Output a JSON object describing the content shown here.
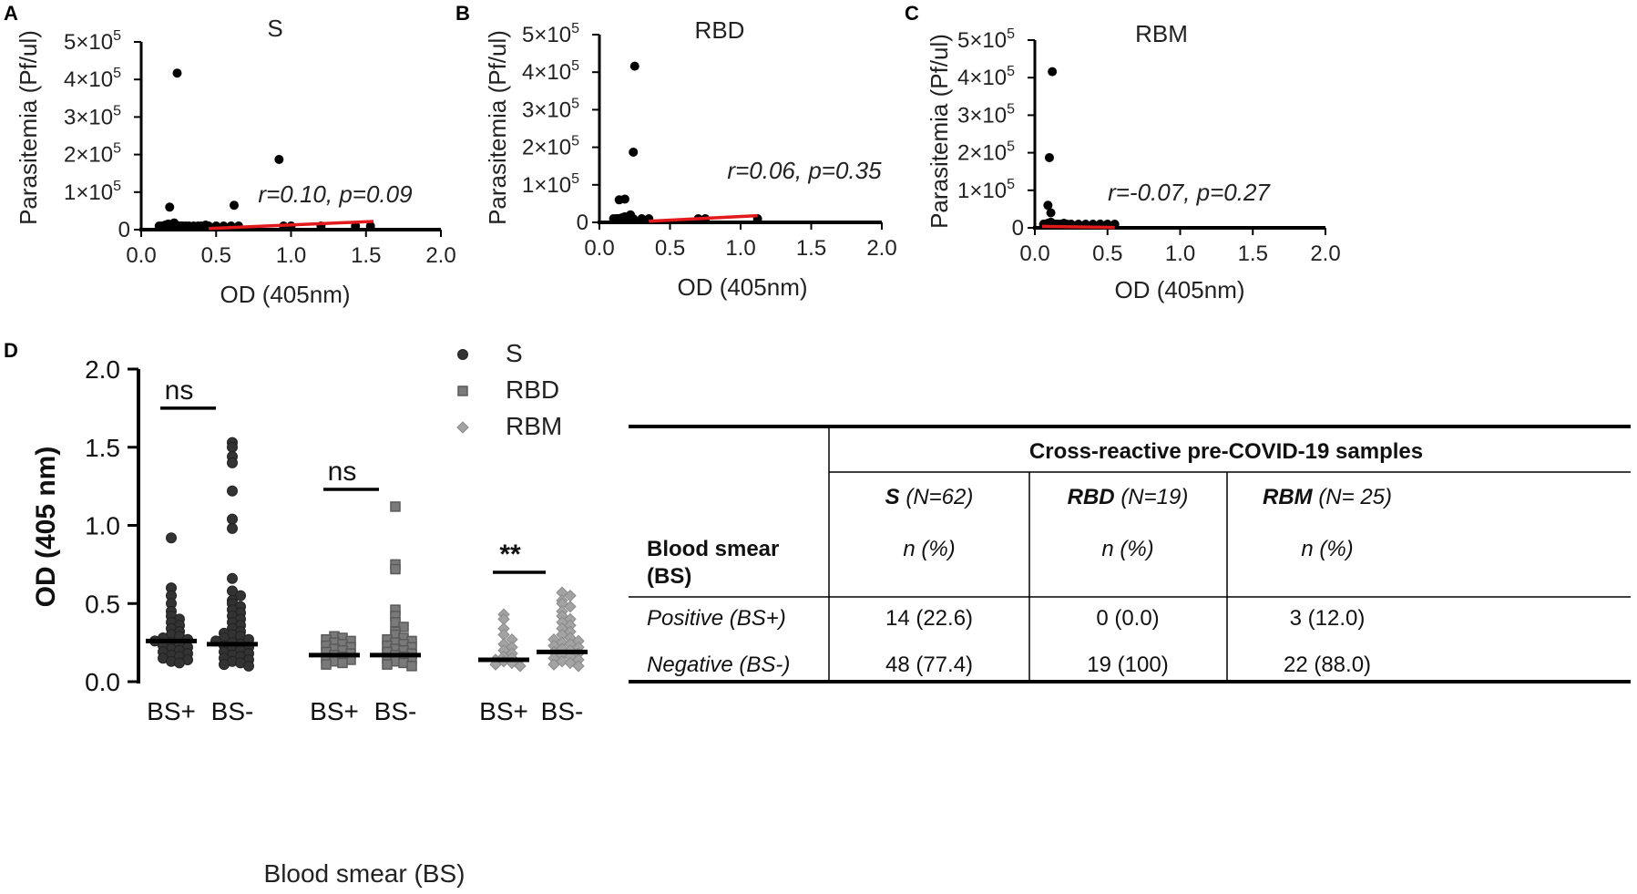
{
  "chart_data": [
    {
      "panel": "A",
      "type": "scatter",
      "title": "S",
      "xlabel": "OD (405nm)",
      "ylabel": "Parasitemia (Pf/ul)",
      "xlim": [
        0,
        2.0
      ],
      "ylim": [
        0,
        500000
      ],
      "xticks": [
        "0.0",
        "0.5",
        "1.0",
        "1.5",
        "2.0"
      ],
      "yticks": [
        "0",
        "1×10",
        "2×10",
        "3×10",
        "4×10",
        "5×10"
      ],
      "ytick_exp": "5",
      "annotation": "r=0.10, p=0.09",
      "fit_line": {
        "x": [
          0.45,
          1.55
        ],
        "y": [
          3000,
          22000
        ]
      },
      "points": [
        [
          0.12,
          5000
        ],
        [
          0.14,
          8000
        ],
        [
          0.15,
          3000
        ],
        [
          0.16,
          12000
        ],
        [
          0.17,
          2000
        ],
        [
          0.18,
          15000
        ],
        [
          0.19,
          6000
        ],
        [
          0.2,
          10000
        ],
        [
          0.21,
          4000
        ],
        [
          0.22,
          18000
        ],
        [
          0.23,
          7000
        ],
        [
          0.24,
          417000
        ],
        [
          0.25,
          9000
        ],
        [
          0.26,
          3000
        ],
        [
          0.27,
          5000
        ],
        [
          0.28,
          2000
        ],
        [
          0.3,
          4000
        ],
        [
          0.32,
          6000
        ],
        [
          0.35,
          3000
        ],
        [
          0.38,
          8000
        ],
        [
          0.4,
          5000
        ],
        [
          0.43,
          12000
        ],
        [
          0.45,
          2000
        ],
        [
          0.19,
          60000
        ],
        [
          0.62,
          65000
        ],
        [
          0.5,
          2000
        ],
        [
          0.55,
          1000
        ],
        [
          0.6,
          1500
        ],
        [
          0.65,
          2000
        ],
        [
          0.92,
          187000
        ],
        [
          0.95,
          2000
        ],
        [
          1.0,
          1000
        ],
        [
          1.2,
          1000
        ],
        [
          1.43,
          1500
        ],
        [
          1.53,
          1000
        ]
      ]
    },
    {
      "panel": "B",
      "type": "scatter",
      "title": "RBD",
      "xlabel": "OD (405nm)",
      "ylabel": "Parasitemia (Pf/ul)",
      "xlim": [
        0,
        2.0
      ],
      "ylim": [
        0,
        500000
      ],
      "xticks": [
        "0.0",
        "0.5",
        "1.0",
        "1.5",
        "2.0"
      ],
      "yticks": [
        "0",
        "1×10",
        "2×10",
        "3×10",
        "4×10",
        "5×10"
      ],
      "ytick_exp": "5",
      "annotation": "r=0.06, p=0.35",
      "fit_line": {
        "x": [
          0.35,
          1.12
        ],
        "y": [
          3000,
          18000
        ]
      },
      "points": [
        [
          0.1,
          3000
        ],
        [
          0.12,
          6000
        ],
        [
          0.13,
          10000
        ],
        [
          0.14,
          2000
        ],
        [
          0.15,
          8000
        ],
        [
          0.16,
          12000
        ],
        [
          0.17,
          4000
        ],
        [
          0.18,
          15000
        ],
        [
          0.19,
          5000
        ],
        [
          0.2,
          9000
        ],
        [
          0.21,
          3000
        ],
        [
          0.22,
          20000
        ],
        [
          0.23,
          7000
        ],
        [
          0.24,
          2000
        ],
        [
          0.25,
          416000
        ],
        [
          0.24,
          187000
        ],
        [
          0.14,
          60000
        ],
        [
          0.18,
          62000
        ],
        [
          0.22,
          12000
        ],
        [
          0.3,
          3000
        ],
        [
          0.35,
          2000
        ],
        [
          0.7,
          1000
        ],
        [
          0.75,
          1500
        ],
        [
          1.12,
          1000
        ]
      ]
    },
    {
      "panel": "C",
      "type": "scatter",
      "title": "RBM",
      "xlabel": "OD (405nm)",
      "ylabel": "Parasitemia (Pf/ul)",
      "xlim": [
        0,
        2.0
      ],
      "ylim": [
        0,
        500000
      ],
      "xticks": [
        "0.0",
        "0.5",
        "1.0",
        "1.5",
        "2.0"
      ],
      "yticks": [
        "0",
        "1×10",
        "2×10",
        "3×10",
        "4×10",
        "5×10"
      ],
      "ytick_exp": "5",
      "annotation": "r=-0.07, p=0.27",
      "fit_line": {
        "x": [
          0.05,
          0.55
        ],
        "y": [
          4000,
          1000
        ]
      },
      "points": [
        [
          0.06,
          3000
        ],
        [
          0.07,
          8000
        ],
        [
          0.08,
          5000
        ],
        [
          0.09,
          12000
        ],
        [
          0.1,
          2000
        ],
        [
          0.11,
          15000
        ],
        [
          0.12,
          416000
        ],
        [
          0.1,
          187000
        ],
        [
          0.09,
          60000
        ],
        [
          0.11,
          40000
        ],
        [
          0.13,
          6000
        ],
        [
          0.14,
          3000
        ],
        [
          0.15,
          9000
        ],
        [
          0.16,
          2000
        ],
        [
          0.18,
          4000
        ],
        [
          0.2,
          12000
        ],
        [
          0.22,
          3000
        ],
        [
          0.25,
          2000
        ],
        [
          0.3,
          5000
        ],
        [
          0.35,
          2000
        ],
        [
          0.4,
          3000
        ],
        [
          0.45,
          10000
        ],
        [
          0.5,
          2000
        ],
        [
          0.55,
          1000
        ]
      ]
    },
    {
      "panel": "D",
      "type": "scatter",
      "subtype": "column dot plot",
      "xlabel": "Blood smear (BS)",
      "ylabel": "OD (405 nm)",
      "ylim": [
        0,
        2.0
      ],
      "yticks": [
        "0.0",
        "0.5",
        "1.0",
        "1.5",
        "2.0"
      ],
      "categories": [
        "BS+",
        "BS-",
        "BS+",
        "BS-",
        "BS+",
        "BS-"
      ],
      "legend": [
        {
          "name": "S",
          "marker": "filled circle",
          "color": "#333333"
        },
        {
          "name": "RBD",
          "marker": "square",
          "color": "#707070"
        },
        {
          "name": "RBM",
          "marker": "diamond",
          "color": "#9a9a9a"
        }
      ],
      "series": [
        {
          "name": "S",
          "groups": [
            {
              "label": "BS+",
              "median": 0.26,
              "values": [
                0.92,
                0.6,
                0.55,
                0.5,
                0.45,
                0.42,
                0.4,
                0.38,
                0.36,
                0.34,
                0.32,
                0.3,
                0.29,
                0.28,
                0.27,
                0.26,
                0.25,
                0.24,
                0.23,
                0.22,
                0.21,
                0.2,
                0.19,
                0.18,
                0.17,
                0.16,
                0.15,
                0.14,
                0.13,
                0.12
              ]
            },
            {
              "label": "BS-",
              "median": 0.24,
              "values": [
                1.53,
                1.5,
                1.44,
                1.4,
                1.22,
                1.04,
                0.98,
                0.66,
                0.58,
                0.55,
                0.52,
                0.5,
                0.48,
                0.46,
                0.44,
                0.42,
                0.4,
                0.38,
                0.36,
                0.34,
                0.32,
                0.31,
                0.3,
                0.29,
                0.28,
                0.27,
                0.26,
                0.25,
                0.24,
                0.23,
                0.22,
                0.21,
                0.2,
                0.19,
                0.18,
                0.17,
                0.16,
                0.15,
                0.14,
                0.13,
                0.12,
                0.11,
                0.1
              ]
            }
          ]
        },
        {
          "name": "RBD",
          "groups": [
            {
              "label": "BS+",
              "median": 0.17,
              "values": [
                0.29,
                0.28,
                0.27,
                0.26,
                0.25,
                0.24,
                0.23,
                0.22,
                0.21,
                0.2,
                0.19,
                0.18,
                0.17,
                0.16,
                0.15,
                0.14,
                0.13,
                0.12,
                0.11
              ]
            },
            {
              "label": "BS-",
              "median": 0.17,
              "values": [
                1.12,
                0.75,
                0.72,
                0.46,
                0.42,
                0.38,
                0.35,
                0.32,
                0.3,
                0.28,
                0.27,
                0.26,
                0.25,
                0.24,
                0.23,
                0.22,
                0.21,
                0.2,
                0.19,
                0.18,
                0.17,
                0.16,
                0.15,
                0.14,
                0.13,
                0.12,
                0.11,
                0.1
              ]
            }
          ]
        },
        {
          "name": "RBM",
          "groups": [
            {
              "label": "BS+",
              "median": 0.14,
              "values": [
                0.43,
                0.4,
                0.34,
                0.3,
                0.27,
                0.24,
                0.22,
                0.2,
                0.18,
                0.16,
                0.15,
                0.14,
                0.13,
                0.12,
                0.11,
                0.1
              ]
            },
            {
              "label": "BS-",
              "median": 0.19,
              "values": [
                0.57,
                0.55,
                0.52,
                0.5,
                0.48,
                0.45,
                0.42,
                0.4,
                0.38,
                0.36,
                0.34,
                0.32,
                0.3,
                0.28,
                0.27,
                0.26,
                0.25,
                0.24,
                0.23,
                0.22,
                0.21,
                0.2,
                0.19,
                0.18,
                0.17,
                0.16,
                0.15,
                0.14,
                0.13,
                0.12,
                0.11,
                0.1
              ]
            }
          ]
        }
      ],
      "significance": [
        {
          "label": "ns",
          "y": 1.75
        },
        {
          "label": "ns",
          "y": 1.23
        },
        {
          "label": "**",
          "y": 0.7
        }
      ]
    },
    {
      "panel": "D-table",
      "type": "table",
      "title": "Cross-reactive  pre-COVID-19 samples",
      "row_header": [
        "Blood smear",
        "(BS)"
      ],
      "columns": [
        {
          "name": "S",
          "n_label": "(N=62)",
          "unit": "n (%)"
        },
        {
          "name": "RBD",
          "n_label": "(N=19)",
          "unit": "n (%)"
        },
        {
          "name": "RBM",
          "n_label": "(N= 25)",
          "unit": "n (%)"
        }
      ],
      "rows": [
        {
          "label": "Positive  (BS+)",
          "values": [
            "14 (22.6)",
            "0 (0.0)",
            "3 (12.0)"
          ]
        },
        {
          "label": "Negative  (BS-)",
          "values": [
            "48 (77.4)",
            "19 (100)",
            "22 (88.0)"
          ]
        }
      ]
    }
  ],
  "panel_letters": [
    "A",
    "B",
    "C",
    "D"
  ]
}
